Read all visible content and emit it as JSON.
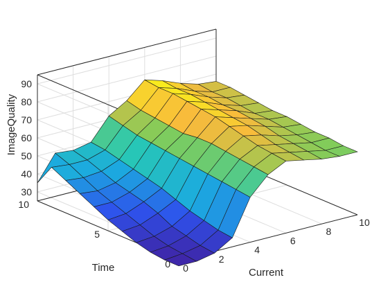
{
  "chart_data": {
    "type": "surface",
    "title": "",
    "xlabel": "Current",
    "ylabel": "Time",
    "zlabel": "ImageQuality",
    "x": [
      0,
      1,
      2,
      3,
      4,
      5,
      6,
      7,
      8,
      9,
      10
    ],
    "y": [
      0,
      1,
      2,
      3,
      4,
      5,
      6,
      7,
      8,
      9,
      10
    ],
    "xlim": [
      0,
      10
    ],
    "ylim": [
      0,
      10
    ],
    "zlim": [
      25,
      95
    ],
    "xticks": [
      "0",
      "2",
      "4",
      "6",
      "8",
      "10"
    ],
    "yticks": [
      "0",
      "5",
      "10"
    ],
    "zticks": [
      "30",
      "40",
      "50",
      "60",
      "70",
      "80",
      "90"
    ],
    "z": [
      [
        22,
        22,
        24,
        30,
        50,
        60,
        65,
        63,
        61,
        60,
        60
      ],
      [
        22,
        23,
        25,
        31,
        51,
        61,
        66,
        64,
        62,
        60,
        60
      ],
      [
        23,
        24,
        27,
        33,
        52,
        62,
        67,
        65,
        63,
        61,
        61
      ],
      [
        25,
        26,
        29,
        35,
        53,
        63,
        69,
        67,
        64,
        62,
        61
      ],
      [
        28,
        29,
        33,
        38,
        54,
        64,
        71,
        69,
        66,
        63,
        62
      ],
      [
        31,
        32,
        36,
        41,
        55,
        64,
        73,
        70,
        67,
        64,
        63
      ],
      [
        35,
        35,
        38,
        43,
        56,
        63,
        74,
        71,
        68,
        64,
        63
      ],
      [
        39,
        38,
        40,
        45,
        57,
        64,
        75,
        72,
        68,
        65,
        64
      ],
      [
        43,
        42,
        43,
        47,
        58,
        65,
        76,
        73,
        69,
        66,
        65
      ],
      [
        47,
        46,
        46,
        49,
        60,
        66,
        76,
        73,
        69,
        66,
        66
      ],
      [
        35,
        49,
        48,
        50,
        62,
        68,
        77,
        74,
        70,
        67,
        66
      ]
    ],
    "colormap": "parula",
    "grid": true,
    "legend": "none"
  }
}
